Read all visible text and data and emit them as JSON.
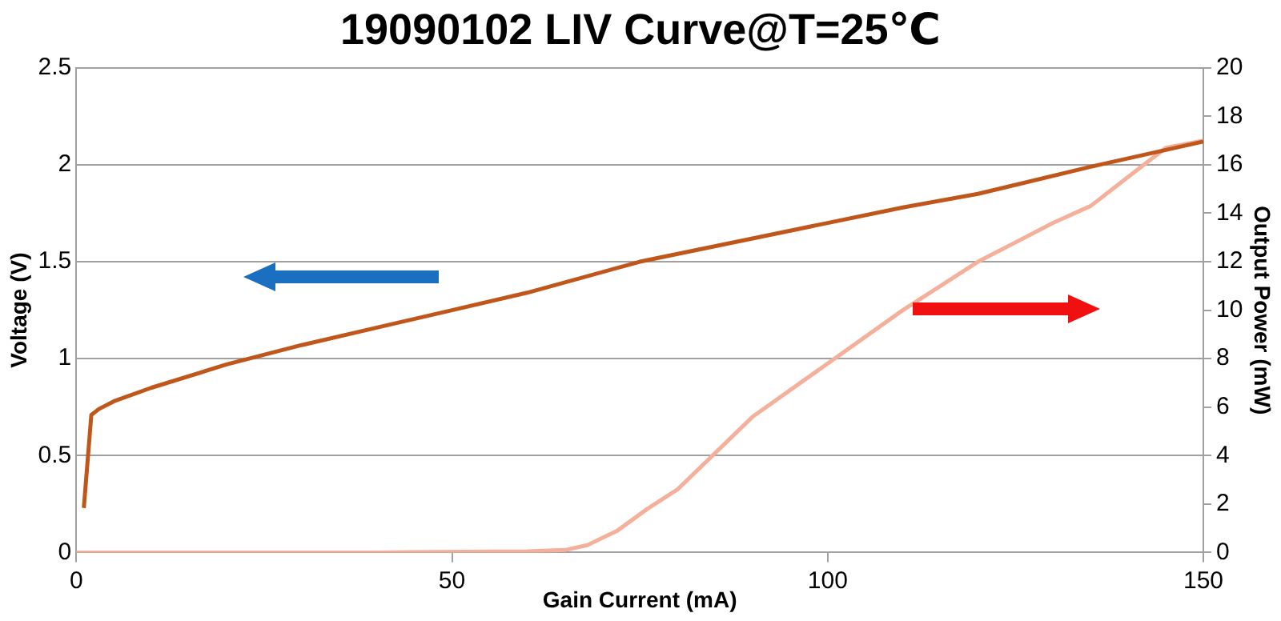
{
  "chart_data": {
    "type": "line",
    "title": "19090102 LIV Curve@T=25℃",
    "xlabel": "Gain Current (mA)",
    "ylabel": "Voltage (V)",
    "y2label": "Output Power (mW)",
    "xlim": [
      0,
      150
    ],
    "xticks": [
      0,
      50,
      100,
      150
    ],
    "ylim": [
      0,
      2.5
    ],
    "yticks": [
      0,
      0.5,
      1,
      1.5,
      2,
      2.5
    ],
    "y2lim": [
      0,
      20
    ],
    "y2ticks": [
      0,
      2,
      4,
      6,
      8,
      10,
      12,
      14,
      16,
      18,
      20
    ],
    "grid": "y",
    "legend": false,
    "marker": "none",
    "line_style": "solid",
    "series": [
      {
        "color": "#c0561a",
        "axis": "y",
        "x": [
          1,
          2,
          3,
          5,
          10,
          20,
          30,
          40,
          50,
          60,
          75,
          90,
          100,
          110,
          120,
          135,
          150
        ],
        "values": [
          0.23,
          0.71,
          0.74,
          0.78,
          0.85,
          0.97,
          1.07,
          1.16,
          1.25,
          1.34,
          1.5,
          1.62,
          1.7,
          1.78,
          1.85,
          1.99,
          2.12
        ]
      },
      {
        "color": "#f4b09a",
        "axis": "y2",
        "x": [
          0,
          20,
          40,
          60,
          65,
          68,
          72,
          76,
          80,
          90,
          100,
          110,
          120,
          130,
          135,
          140,
          145,
          150
        ],
        "values": [
          0,
          0,
          0,
          0.05,
          0.1,
          0.3,
          0.9,
          1.8,
          2.6,
          5.6,
          7.8,
          10.0,
          12.0,
          13.6,
          14.3,
          15.5,
          16.7,
          17.0
        ]
      }
    ]
  }
}
